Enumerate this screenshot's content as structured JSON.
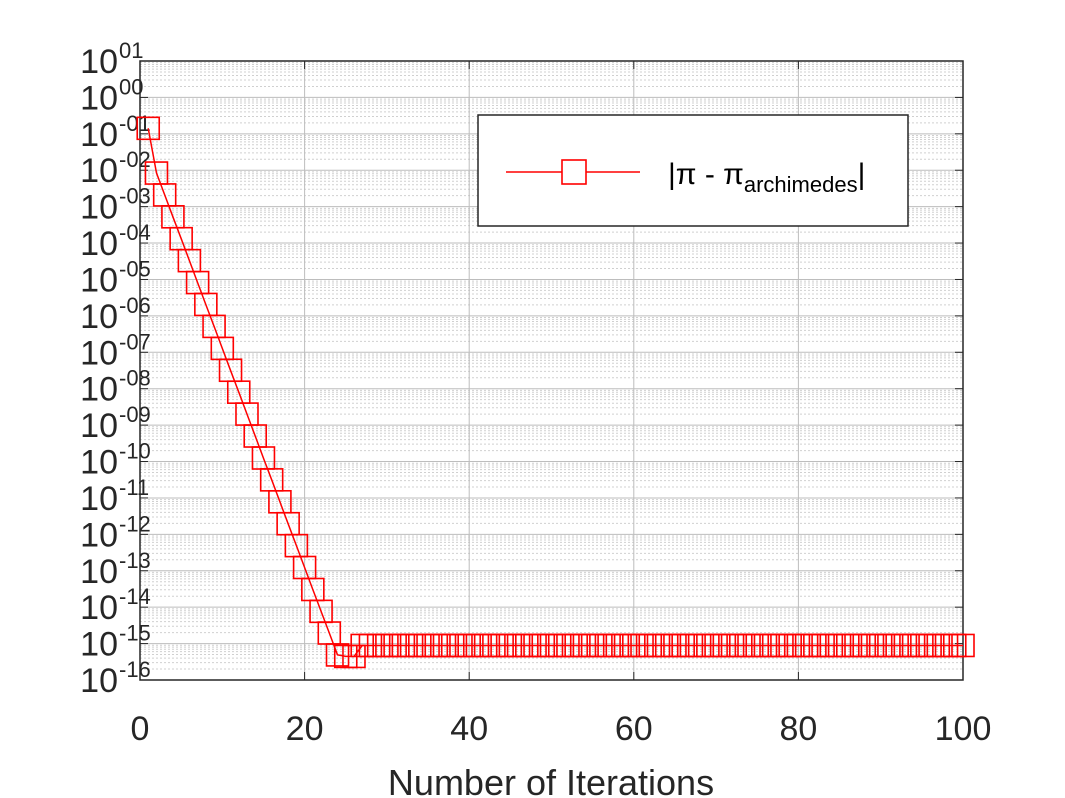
{
  "chart_data": {
    "type": "line",
    "title": "",
    "xlabel": "Number of Iterations",
    "ylabel": "",
    "xlim": [
      0,
      100
    ],
    "ylim_log10": [
      -16,
      1
    ],
    "y_scale": "log",
    "x_ticks": [
      "0",
      "20",
      "40",
      "60",
      "80",
      "100"
    ],
    "y_ticks": [
      {
        "base": "10",
        "exp": "01"
      },
      {
        "base": "10",
        "exp": "00"
      },
      {
        "base": "10",
        "exp": "-01"
      },
      {
        "base": "10",
        "exp": "-02"
      },
      {
        "base": "10",
        "exp": "-03"
      },
      {
        "base": "10",
        "exp": "-04"
      },
      {
        "base": "10",
        "exp": "-05"
      },
      {
        "base": "10",
        "exp": "-06"
      },
      {
        "base": "10",
        "exp": "-07"
      },
      {
        "base": "10",
        "exp": "-08"
      },
      {
        "base": "10",
        "exp": "-09"
      },
      {
        "base": "10",
        "exp": "-10"
      },
      {
        "base": "10",
        "exp": "-11"
      },
      {
        "base": "10",
        "exp": "-12"
      },
      {
        "base": "10",
        "exp": "-13"
      },
      {
        "base": "10",
        "exp": "-14"
      },
      {
        "base": "10",
        "exp": "-15"
      },
      {
        "base": "10",
        "exp": "-16"
      }
    ],
    "grid": true,
    "legend_position": "top-right",
    "series": [
      {
        "legend_main": "|π - π",
        "legend_sub": "archimedes",
        "legend_end": "|",
        "color": "#ff0000",
        "marker": "square",
        "x": [
          1,
          2,
          3,
          4,
          5,
          6,
          7,
          8,
          9,
          10,
          11,
          12,
          13,
          14,
          15,
          16,
          17,
          18,
          19,
          20,
          21,
          22,
          23,
          24,
          25,
          26,
          27,
          28,
          29,
          30,
          31,
          32,
          33,
          34,
          35,
          36,
          37,
          38,
          39,
          40,
          41,
          42,
          43,
          44,
          45,
          46,
          47,
          48,
          49,
          50,
          51,
          52,
          53,
          54,
          55,
          56,
          57,
          58,
          59,
          60,
          61,
          62,
          63,
          64,
          65,
          66,
          67,
          68,
          69,
          70,
          71,
          72,
          73,
          74,
          75,
          76,
          77,
          78,
          79,
          80,
          81,
          82,
          83,
          84,
          85,
          86,
          87,
          88,
          89,
          90,
          91,
          92,
          93,
          94,
          95,
          96,
          97,
          98,
          99,
          100
        ],
        "y": [
          0.1416,
          0.00837,
          0.0021,
          0.000526,
          0.000132,
          3.29e-05,
          8.22e-06,
          2.06e-06,
          5.14e-07,
          1.28e-07,
          3.21e-08,
          8.03e-09,
          2.01e-09,
          5.02e-10,
          1.25e-10,
          3.14e-11,
          7.84e-12,
          1.96e-12,
          4.9e-13,
          1.23e-13,
          3.06e-14,
          7.68e-15,
          1.95e-15,
          4.88e-16,
          4.44e-16,
          4.44e-16,
          8.88e-16,
          8.88e-16,
          8.88e-16,
          8.88e-16,
          8.88e-16,
          8.88e-16,
          8.88e-16,
          8.88e-16,
          8.88e-16,
          8.88e-16,
          8.88e-16,
          8.88e-16,
          8.88e-16,
          8.88e-16,
          8.88e-16,
          8.88e-16,
          8.88e-16,
          8.88e-16,
          8.88e-16,
          8.88e-16,
          8.88e-16,
          8.88e-16,
          8.88e-16,
          8.88e-16,
          8.88e-16,
          8.88e-16,
          8.88e-16,
          8.88e-16,
          8.88e-16,
          8.88e-16,
          8.88e-16,
          8.88e-16,
          8.88e-16,
          8.88e-16,
          8.88e-16,
          8.88e-16,
          8.88e-16,
          8.88e-16,
          8.88e-16,
          8.88e-16,
          8.88e-16,
          8.88e-16,
          8.88e-16,
          8.88e-16,
          8.88e-16,
          8.88e-16,
          8.88e-16,
          8.88e-16,
          8.88e-16,
          8.88e-16,
          8.88e-16,
          8.88e-16,
          8.88e-16,
          8.88e-16,
          8.88e-16,
          8.88e-16,
          8.88e-16,
          8.88e-16,
          8.88e-16,
          8.88e-16,
          8.88e-16,
          8.88e-16,
          8.88e-16,
          8.88e-16,
          8.88e-16,
          8.88e-16,
          8.88e-16,
          8.88e-16,
          8.88e-16,
          8.88e-16,
          8.88e-16,
          8.88e-16,
          8.88e-16,
          8.88e-16
        ]
      }
    ]
  }
}
